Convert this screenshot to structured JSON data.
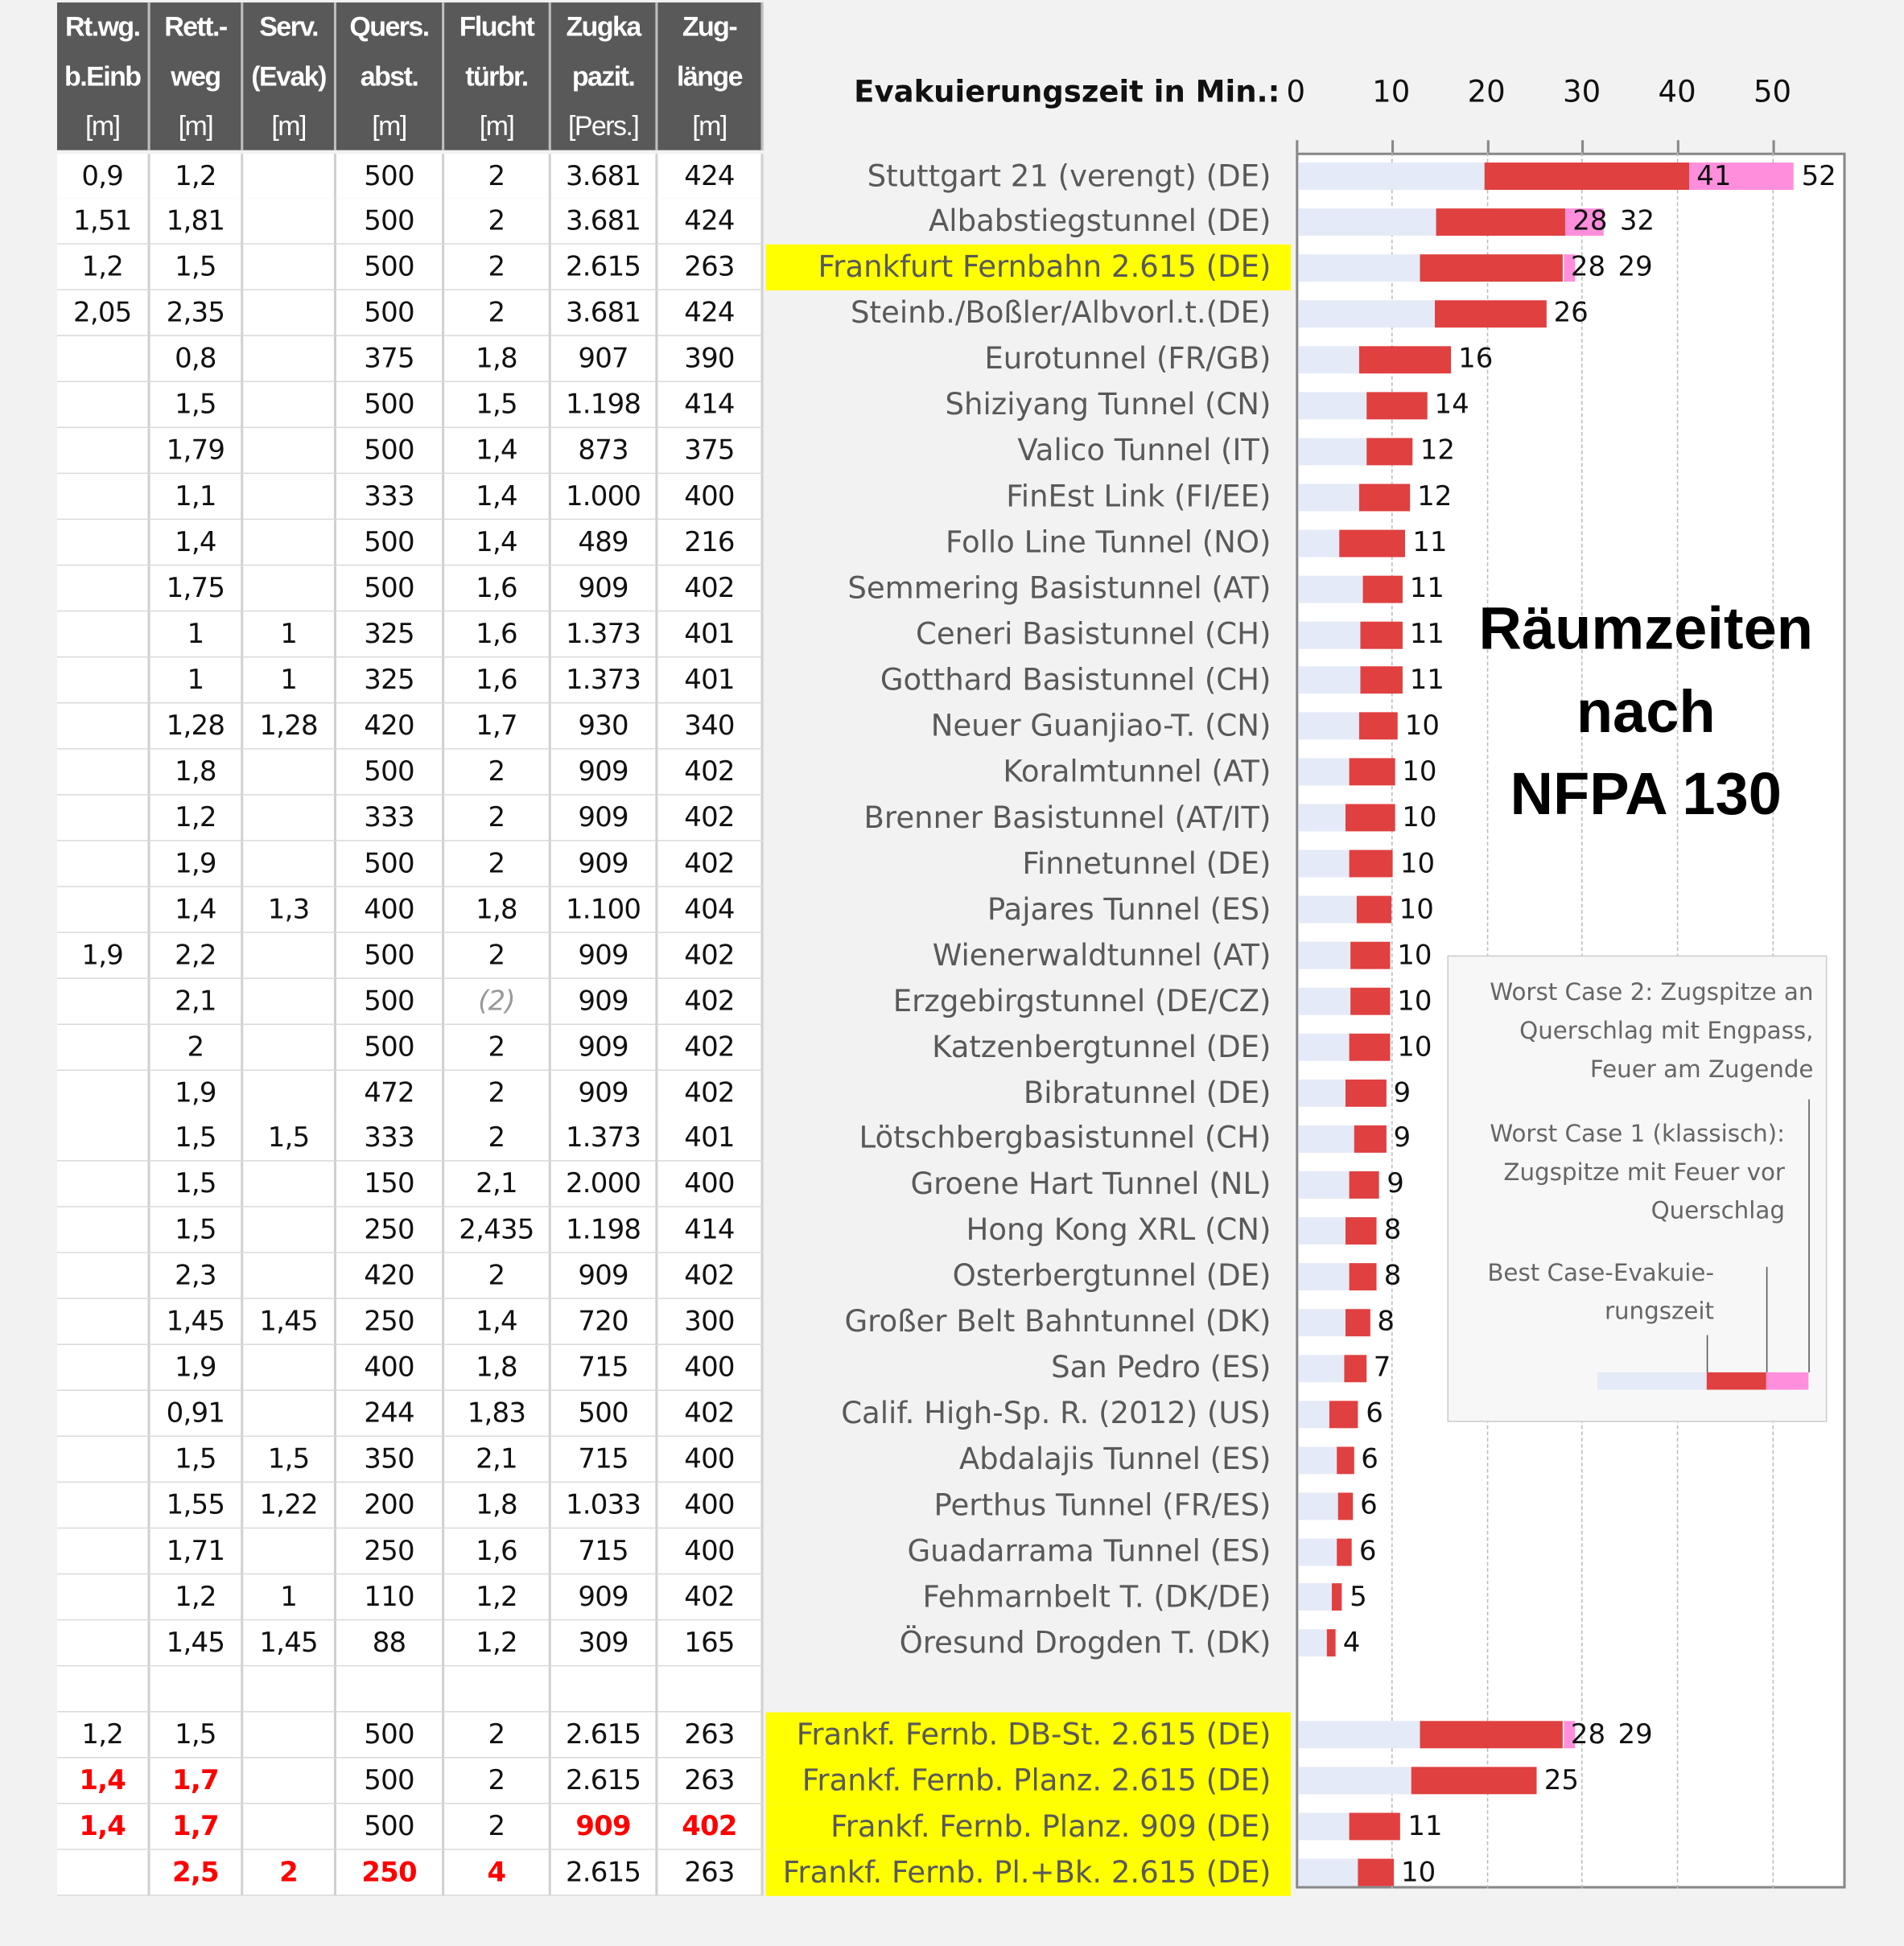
{
  "table": {
    "headers": [
      {
        "l1": "Rt.wg.",
        "l2": "b.Einb",
        "unit": "[m]"
      },
      {
        "l1": "Rett.-",
        "l2": "weg",
        "unit": "[m]"
      },
      {
        "l1": "Serv.",
        "l2": "(Evak)",
        "unit": "[m]"
      },
      {
        "l1": "Quers.",
        "l2": "abst.",
        "unit": "[m]"
      },
      {
        "l1": "Flucht",
        "l2": "türbr.",
        "unit": "[m]"
      },
      {
        "l1": "Zugka",
        "l2": "pazit.",
        "unit": "[Pers.]"
      },
      {
        "l1": "Zug-",
        "l2": "länge",
        "unit": "[m]"
      }
    ]
  },
  "chart_data": {
    "type": "bar",
    "orientation": "horizontal",
    "stacked": true,
    "title": "Räumzeiten nach NFPA 130",
    "xlabel": "Evakuierungszeit in Min.:",
    "xlim": [
      0,
      57
    ],
    "xticks": [
      "0",
      "10",
      "20",
      "30",
      "40",
      "50"
    ],
    "grid": true,
    "colors": {
      "best_case": "#e4eaf7",
      "worst_case_1": "#e04040",
      "worst_case_2": "#ff8fdc",
      "highlight": "#ffff00"
    },
    "legend": {
      "placement": "right",
      "worst_case_2": "Worst Case 2: Zugspitze an\nQuerschlag mit Engpass,\nFeuer am Zugende",
      "worst_case_1": "Worst Case 1 (klassisch):\nZugspitze mit Feuer vor\nQuerschlag",
      "best_case": "Best Case-Evakuie-\nrungszeit"
    },
    "rows": [
      {
        "name": "Stuttgart 21 (verengt) (DE)",
        "cells": [
          "0,9",
          "1,2",
          "",
          "500",
          "2",
          "3.681",
          "424"
        ],
        "best": 19.5,
        "wc1": 41,
        "wc2": 52,
        "wc1_label": "41",
        "wc2_label": "52"
      },
      {
        "name": "Albabstiegstunnel (DE)",
        "cells": [
          "1,51",
          "1,81",
          "",
          "500",
          "2",
          "3.681",
          "424"
        ],
        "best": 14.5,
        "wc1": 28,
        "wc2": 32,
        "wc1_label": "28",
        "wc2_label": "32"
      },
      {
        "name": "Frankfurt Fernbahn 2.615 (DE)",
        "highlight": true,
        "cells": [
          "1,2",
          "1,5",
          "",
          "500",
          "2",
          "2.615",
          "263"
        ],
        "best": 12.7,
        "wc1": 27.8,
        "wc2": 29,
        "wc1_label": "28",
        "wc2_label": "29"
      },
      {
        "name": "Steinb./Boßler/Albvorl.t.(DE)",
        "cells": [
          "2,05",
          "2,35",
          "",
          "500",
          "2",
          "3.681",
          "424"
        ],
        "best": 14.3,
        "wc1": 26,
        "wc1_label": "26"
      },
      {
        "name": "Eurotunnel (FR/GB)",
        "cells": [
          "",
          "0,8",
          "",
          "375",
          "1,8",
          "907",
          "390"
        ],
        "best": 6.4,
        "wc1": 16,
        "wc1_label": "16"
      },
      {
        "name": "Shiziyang Tunnel (CN)",
        "cells": [
          "",
          "1,5",
          "",
          "500",
          "1,5",
          "1.198",
          "414"
        ],
        "best": 7.2,
        "wc1": 13.5,
        "wc1_label": "14"
      },
      {
        "name": "Valico Tunnel (IT)",
        "cells": [
          "",
          "1,79",
          "",
          "500",
          "1,4",
          "873",
          "375"
        ],
        "best": 7.1,
        "wc1": 12,
        "wc1_label": "12"
      },
      {
        "name": "FinEst Link (FI/EE)",
        "cells": [
          "",
          "1,1",
          "",
          "333",
          "1,4",
          "1.000",
          "400"
        ],
        "best": 6.4,
        "wc1": 11.7,
        "wc1_label": "12"
      },
      {
        "name": "Follo Line Tunnel (NO)",
        "cells": [
          "",
          "1,4",
          "",
          "500",
          "1,4",
          "489",
          "216"
        ],
        "best": 4.3,
        "wc1": 11.2,
        "wc1_label": "11"
      },
      {
        "name": "Semmering Basistunnel (AT)",
        "cells": [
          "",
          "1,75",
          "",
          "500",
          "1,6",
          "909",
          "402"
        ],
        "best": 6.8,
        "wc1": 10.9,
        "wc1_label": "11"
      },
      {
        "name": "Ceneri Basistunnel (CH)",
        "cells": [
          "",
          "1",
          "1",
          "325",
          "1,6",
          "1.373",
          "401"
        ],
        "best": 6.5,
        "wc1": 10.9,
        "wc1_label": "11"
      },
      {
        "name": "Gotthard Basistunnel (CH)",
        "cells": [
          "",
          "1",
          "1",
          "325",
          "1,6",
          "1.373",
          "401"
        ],
        "best": 6.5,
        "wc1": 10.9,
        "wc1_label": "11"
      },
      {
        "name": "Neuer Guanjiao-T. (CN)",
        "cells": [
          "",
          "1,28",
          "1,28",
          "420",
          "1,7",
          "930",
          "340"
        ],
        "best": 6.4,
        "wc1": 10.4,
        "wc1_label": "10"
      },
      {
        "name": "Koralmtunnel (AT)",
        "cells": [
          "",
          "1,8",
          "",
          "500",
          "2",
          "909",
          "402"
        ],
        "best": 5.3,
        "wc1": 10.1,
        "wc1_label": "10"
      },
      {
        "name": "Brenner Basistunnel (AT/IT)",
        "cells": [
          "",
          "1,2",
          "",
          "333",
          "2",
          "909",
          "402"
        ],
        "best": 5.0,
        "wc1": 10.1,
        "wc1_label": "10"
      },
      {
        "name": "Finnetunnel (DE)",
        "cells": [
          "",
          "1,9",
          "",
          "500",
          "2",
          "909",
          "402"
        ],
        "best": 5.3,
        "wc1": 9.9,
        "wc1_label": "10"
      },
      {
        "name": "Pajares Tunnel (ES)",
        "cells": [
          "",
          "1,4",
          "1,3",
          "400",
          "1,8",
          "1.100",
          "404"
        ],
        "best": 6.1,
        "wc1": 9.8,
        "wc1_label": "10"
      },
      {
        "name": "Wienerwaldtunnel (AT)",
        "cells": [
          "1,9",
          "2,2",
          "",
          "500",
          "2",
          "909",
          "402"
        ],
        "best": 5.5,
        "wc1": 9.6,
        "wc1_label": "10"
      },
      {
        "name": "Erzgebirgstunnel (DE/CZ)",
        "cells": [
          "",
          "2,1",
          "",
          "500",
          "(2)",
          "909",
          "402"
        ],
        "best": 5.5,
        "wc1": 9.6,
        "wc1_label": "10"
      },
      {
        "name": "Katzenbergtunnel (DE)",
        "cells": [
          "",
          "2",
          "",
          "500",
          "2",
          "909",
          "402"
        ],
        "best": 5.3,
        "wc1": 9.6,
        "wc1_label": "10"
      },
      {
        "name": "Bibratunnel (DE)",
        "cells": [
          "",
          "1,9",
          "",
          "472",
          "2",
          "909",
          "402"
        ],
        "best": 5.0,
        "wc1": 9.2,
        "wc1_label": "9"
      },
      {
        "name": "Lötschbergbasistunnel (CH)",
        "cells": [
          "",
          "1,5",
          "1,5",
          "333",
          "2",
          "1.373",
          "401"
        ],
        "best": 5.9,
        "wc1": 9.2,
        "wc1_label": "9"
      },
      {
        "name": "Groene Hart Tunnel (NL)",
        "cells": [
          "",
          "1,5",
          "",
          "150",
          "2,1",
          "2.000",
          "400"
        ],
        "best": 5.4,
        "wc1": 8.5,
        "wc1_label": "9"
      },
      {
        "name": "Hong Kong XRL (CN)",
        "cells": [
          "",
          "1,5",
          "",
          "250",
          "2,435",
          "1.198",
          "414"
        ],
        "best": 5.0,
        "wc1": 8.2,
        "wc1_label": "8"
      },
      {
        "name": "Osterbergtunnel (DE)",
        "cells": [
          "",
          "2,3",
          "",
          "420",
          "2",
          "909",
          "402"
        ],
        "best": 5.4,
        "wc1": 8.2,
        "wc1_label": "8"
      },
      {
        "name": "Großer Belt Bahntunnel (DK)",
        "cells": [
          "",
          "1,45",
          "1,45",
          "250",
          "1,4",
          "720",
          "300"
        ],
        "best": 5.0,
        "wc1": 7.5,
        "wc1_label": "8"
      },
      {
        "name": "San Pedro (ES)",
        "cells": [
          "",
          "1,9",
          "",
          "400",
          "1,8",
          "715",
          "400"
        ],
        "best": 4.8,
        "wc1": 7.1,
        "wc1_label": "7"
      },
      {
        "name": "Calif. High-Sp. R. (2012) (US)",
        "cells": [
          "",
          "0,91",
          "",
          "244",
          "1,83",
          "500",
          "402"
        ],
        "best": 3.3,
        "wc1": 6.3,
        "wc1_label": "6"
      },
      {
        "name": "Abdalajis Tunnel (ES)",
        "cells": [
          "",
          "1,5",
          "1,5",
          "350",
          "2,1",
          "715",
          "400"
        ],
        "best": 4.1,
        "wc1": 5.8,
        "wc1_label": "6"
      },
      {
        "name": "Perthus Tunnel (FR/ES)",
        "cells": [
          "",
          "1,55",
          "1,22",
          "200",
          "1,8",
          "1.033",
          "400"
        ],
        "best": 4.2,
        "wc1": 5.7,
        "wc1_label": "6"
      },
      {
        "name": "Guadarrama Tunnel (ES)",
        "cells": [
          "",
          "1,71",
          "",
          "250",
          "1,6",
          "715",
          "400"
        ],
        "best": 4.1,
        "wc1": 5.6,
        "wc1_label": "6"
      },
      {
        "name": "Fehmarnbelt T. (DK/DE)",
        "cells": [
          "",
          "1,2",
          "1",
          "110",
          "1,2",
          "909",
          "402"
        ],
        "best": 3.5,
        "wc1": 4.6,
        "wc1_label": "5"
      },
      {
        "name": "Öresund Drogden T. (DK)",
        "cells": [
          "",
          "1,45",
          "1,45",
          "88",
          "1,2",
          "309",
          "165"
        ],
        "best": 3.0,
        "wc1": 3.9,
        "wc1_label": "4"
      },
      {
        "name": "",
        "cells": [
          "",
          "",
          "",
          "",
          "",
          "",
          ""
        ],
        "empty": true
      },
      {
        "name": "Frankf. Fernb. DB-St. 2.615 (DE)",
        "highlight": true,
        "cells": [
          "1,2",
          "1,5",
          "",
          "500",
          "2",
          "2.615",
          "263"
        ],
        "best": 12.7,
        "wc1": 27.8,
        "wc2": 29,
        "wc1_label": "28",
        "wc2_label": "29"
      },
      {
        "name": "Frankf. Fernb. Planz. 2.615 (DE)",
        "highlight": true,
        "cells": [
          "1,4",
          "1,7",
          "",
          "500",
          "2",
          "2.615",
          "263"
        ],
        "red": [
          0,
          1
        ],
        "best": 11.8,
        "wc1": 25,
        "wc1_label": "25"
      },
      {
        "name": "Frankf. Fernb. Planz. 909 (DE)",
        "highlight": true,
        "cells": [
          "1,4",
          "1,7",
          "",
          "500",
          "2",
          "909",
          "402"
        ],
        "red": [
          0,
          1,
          5,
          6
        ],
        "best": 5.3,
        "wc1": 10.7,
        "wc1_label": "11"
      },
      {
        "name": "Frankf. Fernb. Pl.+Bk. 2.615 (DE)",
        "highlight": true,
        "cells": [
          "",
          "2,5",
          "2",
          "250",
          "4",
          "2.615",
          "263"
        ],
        "red": [
          1,
          2,
          3,
          4
        ],
        "best": 6.3,
        "wc1": 10,
        "wc1_label": "10"
      }
    ]
  },
  "title_lines": [
    "Räumzeiten",
    "nach",
    "NFPA 130"
  ]
}
